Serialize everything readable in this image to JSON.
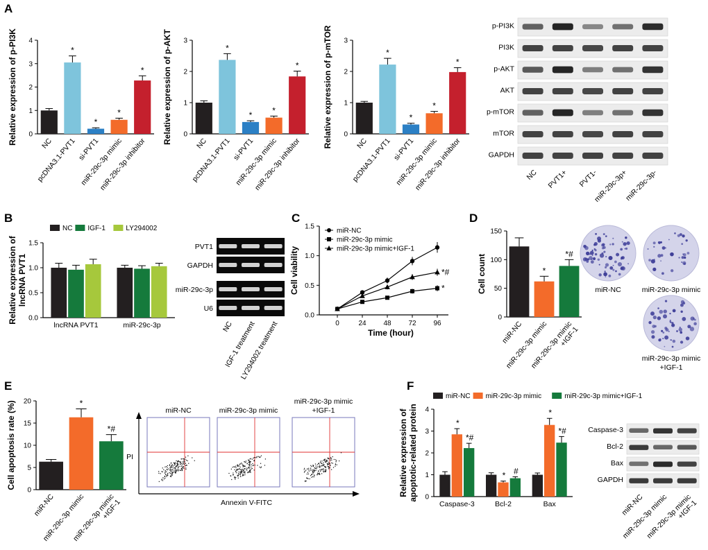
{
  "panel_labels": [
    "A",
    "B",
    "C",
    "D",
    "E",
    "F"
  ],
  "colors": {
    "nc": "#231f20",
    "pcdna": "#7ec4dc",
    "si": "#2c80c5",
    "mimic": "#f36b2a",
    "inhibitor": "#c4202d",
    "igf": "#157a3c",
    "ly": "#a6c83c",
    "blot_bg": "#ececec",
    "gel_bg": "#0a0a0a",
    "plate": "#d4d4ea",
    "colony": "#3f3f99",
    "flow_frame": "#7777bb",
    "flow_gate": "#e03030"
  },
  "chart_data": [
    {
      "id": "A1",
      "type": "bar",
      "ylabel": "Relative expression of p-PI3K",
      "xlabel": "",
      "ylim": [
        0,
        4
      ],
      "yticks": [
        0,
        1,
        2,
        3,
        4
      ],
      "categories": [
        "NC",
        "pcDNA3.1-PVT1",
        "si-PVT1",
        "miR-29c-3p mimic",
        "miR-29c-3p inhibitor"
      ],
      "values": [
        1.0,
        3.05,
        0.22,
        0.6,
        2.28
      ],
      "errors": [
        0.08,
        0.28,
        0.04,
        0.07,
        0.2
      ],
      "annotations": [
        "",
        "*",
        "*",
        "*",
        "*"
      ],
      "color_keys": [
        "nc",
        "pcdna",
        "si",
        "mimic",
        "inhibitor"
      ]
    },
    {
      "id": "A2",
      "type": "bar",
      "ylabel": "Relative expression of p-AKT",
      "xlabel": "",
      "ylim": [
        0,
        3
      ],
      "yticks": [
        0,
        1,
        2,
        3
      ],
      "categories": [
        "NC",
        "pcDNA3.1-PVT1",
        "si-PVT1",
        "miR-29c-3p mimic",
        "miR-29c-3p inhibitor"
      ],
      "values": [
        1.0,
        2.37,
        0.38,
        0.52,
        1.84
      ],
      "errors": [
        0.06,
        0.2,
        0.04,
        0.05,
        0.17
      ],
      "annotations": [
        "",
        "*",
        "*",
        "*",
        "*"
      ],
      "color_keys": [
        "nc",
        "pcdna",
        "si",
        "mimic",
        "inhibitor"
      ]
    },
    {
      "id": "A3",
      "type": "bar",
      "ylabel": "Relative expression of p-mTOR",
      "xlabel": "",
      "ylim": [
        0,
        3
      ],
      "yticks": [
        0,
        1,
        2,
        3
      ],
      "categories": [
        "NC",
        "pcDNA3.1-PVT1",
        "si-PVT1",
        "miR-29c-3p mimic",
        "miR-29c-3p inhibitor"
      ],
      "values": [
        1.0,
        2.22,
        0.3,
        0.66,
        1.98
      ],
      "errors": [
        0.04,
        0.2,
        0.04,
        0.06,
        0.14
      ],
      "annotations": [
        "",
        "*",
        "*",
        "*",
        "*"
      ],
      "color_keys": [
        "nc",
        "pcdna",
        "si",
        "mimic",
        "inhibitor"
      ]
    },
    {
      "id": "B",
      "type": "bar",
      "ylabel": "Relative expression of lncRNA PVT1",
      "xlabel": "",
      "ylim": [
        0,
        1.5
      ],
      "yticks": [
        0.0,
        0.5,
        1.0,
        1.5
      ],
      "categories": [
        "lncRNA PVT1",
        "miR-29c-3p"
      ],
      "series": [
        {
          "name": "NC",
          "color_key": "nc",
          "values": [
            1.0,
            1.0
          ],
          "errors": [
            0.09,
            0.05
          ]
        },
        {
          "name": "IGF-1",
          "color_key": "igf",
          "values": [
            0.96,
            0.98
          ],
          "errors": [
            0.09,
            0.06
          ]
        },
        {
          "name": "LY294002",
          "color_key": "ly",
          "values": [
            1.07,
            1.03
          ],
          "errors": [
            0.1,
            0.06
          ]
        }
      ],
      "legend": "top"
    },
    {
      "id": "C",
      "type": "line",
      "ylabel": "Cell viability",
      "xlabel": "Time (hour)",
      "x": [
        0,
        24,
        48,
        72,
        96
      ],
      "xlim": [
        0,
        96
      ],
      "ylim": [
        0,
        1.5
      ],
      "yticks": [
        0.0,
        0.5,
        1.0,
        1.5
      ],
      "series": [
        {
          "name": "miR-NC",
          "marker": "circle",
          "values": [
            0.1,
            0.38,
            0.58,
            0.91,
            1.14
          ],
          "errors": [
            0.01,
            0.03,
            0.05,
            0.07,
            0.09
          ]
        },
        {
          "name": "miR-29c-3p mimic",
          "marker": "square",
          "values": [
            0.1,
            0.22,
            0.29,
            0.4,
            0.45
          ],
          "errors": [
            0.01,
            0.02,
            0.03,
            0.04,
            0.05
          ]
        },
        {
          "name": "miR-29c-3p mimic+IGF-1",
          "marker": "triangle",
          "values": [
            0.1,
            0.32,
            0.47,
            0.64,
            0.72
          ],
          "errors": [
            0.01,
            0.03,
            0.04,
            0.05,
            0.06
          ]
        }
      ],
      "end_annotations": [
        "",
        "*",
        "*#"
      ],
      "legend": "top-left"
    },
    {
      "id": "D",
      "type": "bar",
      "ylabel": "Cell count",
      "xlabel": "",
      "ylim": [
        0,
        150
      ],
      "yticks": [
        0,
        50,
        100,
        150
      ],
      "categories": [
        "miR-NC",
        "miR-29c-3p mimic",
        "miR-29c-3p mimic +IGF-1"
      ],
      "values": [
        123,
        62,
        89
      ],
      "errors": [
        15,
        9,
        11
      ],
      "annotations": [
        "",
        "*",
        "*#"
      ],
      "color_keys": [
        "nc",
        "mimic",
        "igf"
      ]
    },
    {
      "id": "E",
      "type": "bar",
      "ylabel": "Cell apoptosis rate (%)",
      "xlabel": "",
      "ylim": [
        0,
        20
      ],
      "yticks": [
        0,
        5,
        10,
        15,
        20
      ],
      "categories": [
        "miR-NC",
        "miR-29c-3p mimic",
        "miR-29c-3p mimic +IGF-1"
      ],
      "values": [
        6.3,
        16.3,
        10.9
      ],
      "errors": [
        0.5,
        1.9,
        1.5
      ],
      "annotations": [
        "",
        "*",
        "*#"
      ],
      "color_keys": [
        "nc",
        "mimic",
        "igf"
      ]
    },
    {
      "id": "F",
      "type": "bar",
      "ylabel": "Relative expression of apoptotic-related protein",
      "xlabel": "",
      "ylim": [
        0,
        4
      ],
      "yticks": [
        0,
        1,
        2,
        3,
        4
      ],
      "categories": [
        "Caspase-3",
        "Bcl-2",
        "Bax"
      ],
      "series": [
        {
          "name": "miR-NC",
          "color_key": "nc",
          "values": [
            1.0,
            1.0,
            1.0
          ],
          "errors": [
            0.14,
            0.09,
            0.08
          ]
        },
        {
          "name": "miR-29c-3p mimic",
          "color_key": "mimic",
          "values": [
            2.85,
            0.65,
            3.28
          ],
          "errors": [
            0.26,
            0.06,
            0.3
          ]
        },
        {
          "name": "miR-29c-3p mimic+IGF-1",
          "color_key": "igf",
          "values": [
            2.22,
            0.84,
            2.47
          ],
          "errors": [
            0.22,
            0.07,
            0.28
          ]
        }
      ],
      "annotations": [
        [
          "",
          "*",
          "*#"
        ],
        [
          "",
          "*",
          "#"
        ],
        [
          "",
          "*",
          "*#"
        ]
      ],
      "legend": "top"
    }
  ],
  "blots": {
    "A": {
      "rows": [
        "p-PI3K",
        "PI3K",
        "p-AKT",
        "AKT",
        "p-mTOR",
        "mTOR",
        "GAPDH"
      ],
      "lanes": [
        "NC",
        "PVT1+",
        "PVT1-",
        "miR-29c-3p+",
        "miR-29c-3p-"
      ],
      "intensity": [
        [
          0.55,
          0.95,
          0.3,
          0.45,
          0.9
        ],
        [
          0.75,
          0.75,
          0.72,
          0.75,
          0.75
        ],
        [
          0.6,
          0.95,
          0.35,
          0.45,
          0.85
        ],
        [
          0.75,
          0.75,
          0.72,
          0.75,
          0.75
        ],
        [
          0.55,
          0.95,
          0.35,
          0.45,
          0.85
        ],
        [
          0.75,
          0.75,
          0.72,
          0.75,
          0.75
        ],
        [
          0.75,
          0.75,
          0.75,
          0.75,
          0.75
        ]
      ]
    },
    "B": {
      "rows": [
        "PVT1",
        "GAPDH",
        "miR-29c-3p",
        "U6"
      ],
      "lanes": [
        "NC",
        "IGF-1 treatment",
        "LY294002 treatment"
      ]
    },
    "F": {
      "rows": [
        "Caspase-3",
        "Bcl-2",
        "Bax",
        "GAPDH"
      ],
      "lanes": [
        "miR-NC",
        "miR-29c-3p mimic",
        "miR-29c-3p mimic +IGF-1"
      ],
      "intensity": [
        [
          0.5,
          0.85,
          0.75
        ],
        [
          0.8,
          0.5,
          0.6
        ],
        [
          0.45,
          0.9,
          0.75
        ],
        [
          0.8,
          0.8,
          0.8
        ]
      ]
    }
  },
  "colony": {
    "labels": [
      "miR-NC",
      "miR-29c-3p mimic",
      "miR-29c-3p mimic +IGF-1"
    ],
    "counts": [
      70,
      34,
      52
    ]
  },
  "flow": {
    "titles": [
      "miR-NC",
      "miR-29c-3p mimic",
      "miR-29c-3p mimic +IGF-1"
    ],
    "xlabel": "Annexin V-FITC",
    "ylabel": "PI"
  }
}
